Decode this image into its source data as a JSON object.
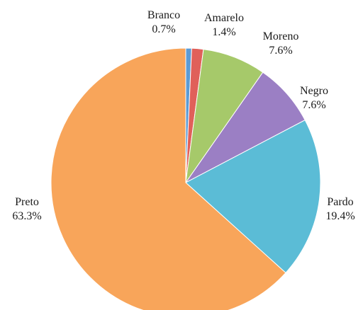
{
  "chart_data": {
    "type": "pie",
    "categories": [
      "Branco",
      "Amarelo",
      "Moreno",
      "Negro",
      "Pardo",
      "Preto"
    ],
    "values": [
      0.7,
      1.4,
      7.6,
      7.6,
      19.4,
      63.3
    ],
    "value_labels": [
      "0.7%",
      "1.4%",
      "7.6%",
      "7.6%",
      "19.4%",
      "63.3%"
    ],
    "colors": [
      "#5b9bd5",
      "#e0605a",
      "#a6c96a",
      "#9b7fc4",
      "#5bbcd6",
      "#f8a55a"
    ],
    "start_angle_deg": 0,
    "direction": "clockwise",
    "legend": "none"
  }
}
